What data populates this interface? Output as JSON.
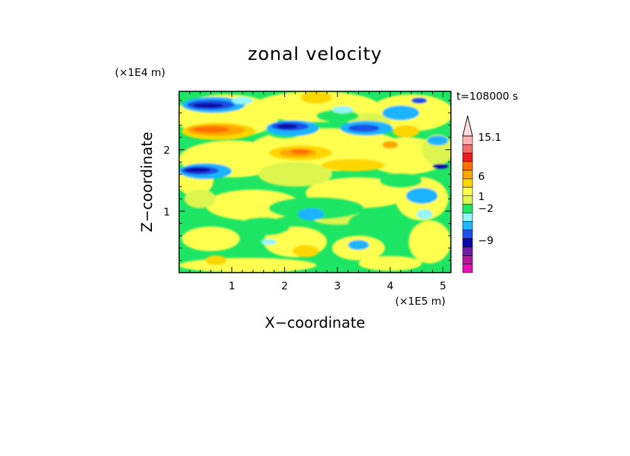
{
  "chart_data": {
    "type": "heatmap",
    "title": "zonal velocity",
    "xlabel": "X−coordinate",
    "ylabel": "Z−coordinate",
    "x_scale_label": "(×1E5 m)",
    "y_scale_label": "(×1E4 m)",
    "time_label": "t=108000 s",
    "xlim": [
      0,
      5.15
    ],
    "ylim": [
      0,
      2.95
    ],
    "xticks": [
      1,
      2,
      3,
      4,
      5
    ],
    "yticks": [
      1,
      2
    ],
    "colorbar": {
      "extend": "max",
      "colors": [
        "#e60fb4",
        "#b4199b",
        "#6e1eaa",
        "#0a0aaa",
        "#1e50e6",
        "#1eb4ff",
        "#96f5f5",
        "#1ee664",
        "#dcf550",
        "#ffff50",
        "#ffd700",
        "#ffa500",
        "#ff6e00",
        "#e61e1e",
        "#f06e6e",
        "#ffb4b4",
        "#ffdcdc"
      ],
      "tick_labels": [
        "15.1",
        "6",
        "1",
        "−2",
        "−9"
      ]
    }
  }
}
